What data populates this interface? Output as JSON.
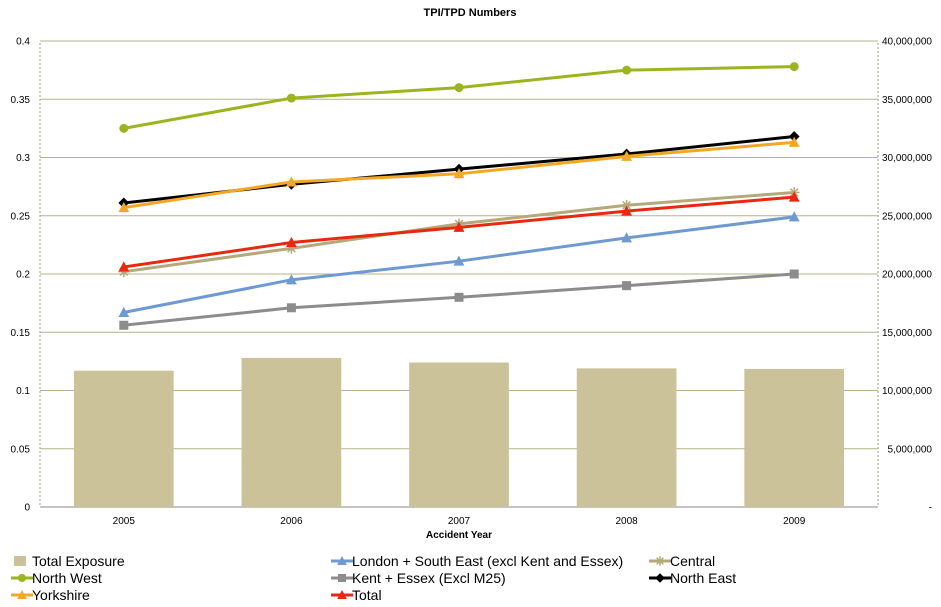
{
  "chart_data": {
    "type": "bar+line",
    "title": "TPI/TPD Numbers",
    "xlabel": "Accident Year",
    "ylabel": "",
    "y2label": "",
    "categories": [
      "2005",
      "2006",
      "2007",
      "2008",
      "2009"
    ],
    "ylim": [
      0,
      0.4
    ],
    "y_ticks": [
      "0",
      "0.05",
      "0.1",
      "0.15",
      "0.2",
      "0.25",
      "0.3",
      "0.35",
      "0.4"
    ],
    "y2lim": [
      0,
      40000000
    ],
    "y2_ticks": [
      "-",
      "5,000,000",
      "10,000,000",
      "15,000,000",
      "20,000,000",
      "25,000,000",
      "30,000,000",
      "35,000,000",
      "40,000,000"
    ],
    "grid": true,
    "legend_position": "bottom",
    "bar_series": {
      "name": "Total Exposure",
      "axis": "right",
      "color": "#CCC299",
      "values": [
        11700000,
        12800000,
        12400000,
        11900000,
        11850000
      ]
    },
    "series": [
      {
        "name": "North West",
        "color": "#9BB51E",
        "marker": "circle",
        "values": [
          0.325,
          0.351,
          0.36,
          0.375,
          0.378
        ]
      },
      {
        "name": "North East",
        "color": "#000000",
        "marker": "diamond",
        "values": [
          0.261,
          0.277,
          0.29,
          0.303,
          0.318
        ]
      },
      {
        "name": "Yorkshire",
        "color": "#F5A623",
        "marker": "triangle",
        "values": [
          0.257,
          0.279,
          0.286,
          0.301,
          0.313
        ]
      },
      {
        "name": "Central",
        "color": "#B5A97A",
        "marker": "star",
        "values": [
          0.202,
          0.222,
          0.243,
          0.259,
          0.27
        ]
      },
      {
        "name": "Total",
        "color": "#E8280F",
        "marker": "triangle",
        "values": [
          0.206,
          0.227,
          0.24,
          0.254,
          0.266
        ]
      },
      {
        "name": "London + South East (excl Kent and Essex)",
        "color": "#6E9AD4",
        "marker": "triangle",
        "values": [
          0.167,
          0.195,
          0.211,
          0.231,
          0.249
        ]
      },
      {
        "name": "Kent + Essex (Excl M25)",
        "color": "#8C8C8C",
        "marker": "square",
        "values": [
          0.156,
          0.171,
          0.18,
          0.19,
          0.2
        ]
      }
    ],
    "legend_order": [
      "Total Exposure",
      "London + South East (excl Kent and Essex)",
      "Central",
      "North West",
      "Kent + Essex (Excl M25)",
      "North East",
      "Yorkshire",
      "Total"
    ]
  }
}
